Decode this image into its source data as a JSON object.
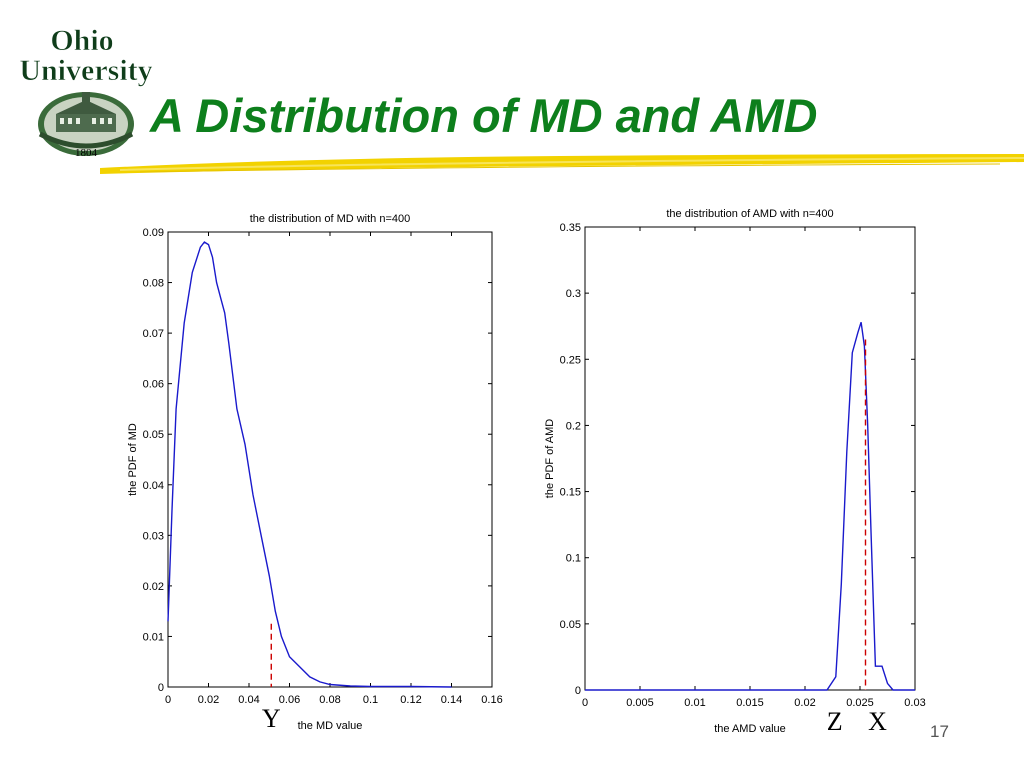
{
  "slide": {
    "title": "A Distribution of MD and AMD",
    "page_number": "17",
    "logo": {
      "line1": "Ohio",
      "line2": "University",
      "year": "1804"
    }
  },
  "colors": {
    "title": "#0d7f1c",
    "curve": "#1a1acc",
    "marker_line": "#cc0000",
    "underline": "#f2d200"
  },
  "chart_data": [
    {
      "type": "line",
      "title": "the distribution of MD with n=400",
      "xlabel": "the MD value",
      "ylabel": "the PDF of MD",
      "xlim": [
        0,
        0.16
      ],
      "ylim": [
        0,
        0.09
      ],
      "xticks": [
        0,
        0.02,
        0.04,
        0.06,
        0.08,
        0.1,
        0.12,
        0.14,
        0.16
      ],
      "xtick_labels": [
        "0",
        "0.02",
        "0.04",
        "0.06",
        "0.08",
        "0.1",
        "0.12",
        "0.14",
        "0.16"
      ],
      "yticks": [
        0,
        0.01,
        0.02,
        0.03,
        0.04,
        0.05,
        0.06,
        0.07,
        0.08,
        0.09
      ],
      "ytick_labels": [
        "0",
        "0.01",
        "0.02",
        "0.03",
        "0.04",
        "0.05",
        "0.06",
        "0.07",
        "0.08",
        "0.09"
      ],
      "series": [
        {
          "x": [
            0,
            0.002,
            0.004,
            0.008,
            0.012,
            0.016,
            0.018,
            0.02,
            0.022,
            0.024,
            0.026,
            0.028,
            0.03,
            0.034,
            0.038,
            0.042,
            0.046,
            0.05,
            0.053,
            0.056,
            0.06,
            0.065,
            0.07,
            0.075,
            0.08,
            0.09,
            0.1,
            0.12,
            0.14
          ],
          "y": [
            0.013,
            0.035,
            0.055,
            0.072,
            0.082,
            0.087,
            0.088,
            0.0875,
            0.085,
            0.08,
            0.077,
            0.074,
            0.068,
            0.055,
            0.048,
            0.038,
            0.03,
            0.022,
            0.015,
            0.01,
            0.006,
            0.004,
            0.002,
            0.001,
            0.0005,
            0.0002,
            0.0001,
            0.0001,
            0
          ]
        }
      ],
      "markers": [
        {
          "label": "Y",
          "x": 0.051,
          "y": 0.0125
        }
      ]
    },
    {
      "type": "line",
      "title": "the distribution of AMD with n=400",
      "xlabel": "the AMD value",
      "ylabel": "the PDF of AMD",
      "xlim": [
        0,
        0.03
      ],
      "ylim": [
        0,
        0.35
      ],
      "xticks": [
        0,
        0.005,
        0.01,
        0.015,
        0.02,
        0.025,
        0.03
      ],
      "xtick_labels": [
        "0",
        "0.005",
        "0.01",
        "0.015",
        "0.02",
        "0.025",
        "0.03"
      ],
      "yticks": [
        0,
        0.05,
        0.1,
        0.15,
        0.2,
        0.25,
        0.3,
        0.35
      ],
      "ytick_labels": [
        "0",
        "0.05",
        "0.1",
        "0.15",
        "0.2",
        "0.25",
        "0.3",
        "0.35"
      ],
      "series": [
        {
          "x": [
            0,
            0.022,
            0.0228,
            0.0233,
            0.0238,
            0.0243,
            0.0248,
            0.0251,
            0.0254,
            0.0257,
            0.026,
            0.0264,
            0.027,
            0.0275,
            0.028,
            0.03
          ],
          "y": [
            0,
            0,
            0.01,
            0.08,
            0.18,
            0.255,
            0.27,
            0.278,
            0.26,
            0.2,
            0.12,
            0.018,
            0.018,
            0.005,
            0,
            0
          ]
        }
      ],
      "markers": [
        {
          "label": "X",
          "x": 0.0255,
          "y": 0.265
        }
      ],
      "extra_labels": [
        {
          "label": "Z",
          "x": 0.0227
        }
      ]
    }
  ]
}
